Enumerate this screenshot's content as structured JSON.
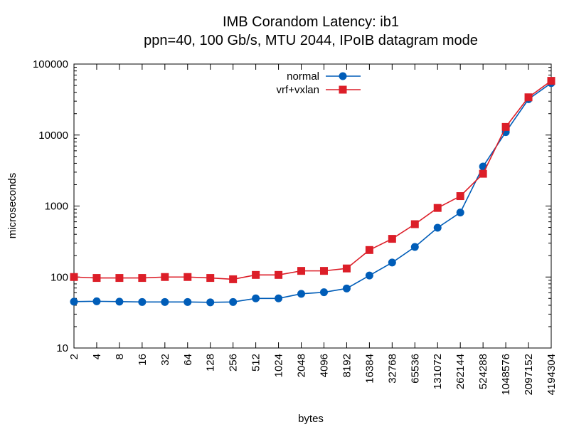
{
  "chart_data": {
    "type": "line",
    "title": "IMB Corandom Latency: ib1",
    "subtitle": "ppn=40, 100 Gb/s, MTU 2044, IPoIB datagram mode",
    "xlabel": "bytes",
    "ylabel": "microseconds",
    "x_scale": "log2",
    "y_scale": "log10",
    "ylim": [
      10,
      100000
    ],
    "y_ticks": [
      "10",
      "100",
      "1000",
      "10000",
      "100000"
    ],
    "x": [
      2,
      4,
      8,
      16,
      32,
      64,
      128,
      256,
      512,
      1024,
      2048,
      4096,
      8192,
      16384,
      32768,
      65536,
      131072,
      262144,
      524288,
      1048576,
      2097152,
      4194304
    ],
    "categories": [
      "2",
      "4",
      "8",
      "16",
      "32",
      "64",
      "128",
      "256",
      "512",
      "1024",
      "2048",
      "4096",
      "8192",
      "16384",
      "32768",
      "65536",
      "131072",
      "262144",
      "524288",
      "1048576",
      "2097152",
      "4194304"
    ],
    "legend_position": "top-center",
    "grid": false,
    "series": [
      {
        "name": "normal",
        "color": "#005db8",
        "marker": "circle",
        "x": [
          2,
          4,
          8,
          16,
          32,
          64,
          128,
          256,
          512,
          1024,
          2048,
          4096,
          8192,
          16384,
          32768,
          65536,
          131072,
          262144,
          524288,
          1048576,
          2097152,
          4194304
        ],
        "values": [
          45,
          45.5,
          45,
          44.5,
          44.5,
          44.5,
          44,
          44.5,
          50,
          50,
          58,
          61,
          69,
          105,
          160,
          265,
          495,
          810,
          3600,
          11000,
          32000,
          54000
        ]
      },
      {
        "name": "vrf+vxlan",
        "color": "#dc1e28",
        "marker": "square",
        "x": [
          2,
          4,
          8,
          16,
          32,
          64,
          128,
          256,
          512,
          1024,
          2048,
          4096,
          8192,
          16384,
          32768,
          65536,
          131072,
          262144,
          524288,
          1048576,
          2097152,
          4194304
        ],
        "values": [
          100,
          97,
          97,
          97,
          100,
          100,
          97,
          93,
          107,
          107,
          122,
          122,
          132,
          240,
          345,
          555,
          940,
          1380,
          2850,
          13000,
          34000,
          58000
        ]
      }
    ]
  }
}
